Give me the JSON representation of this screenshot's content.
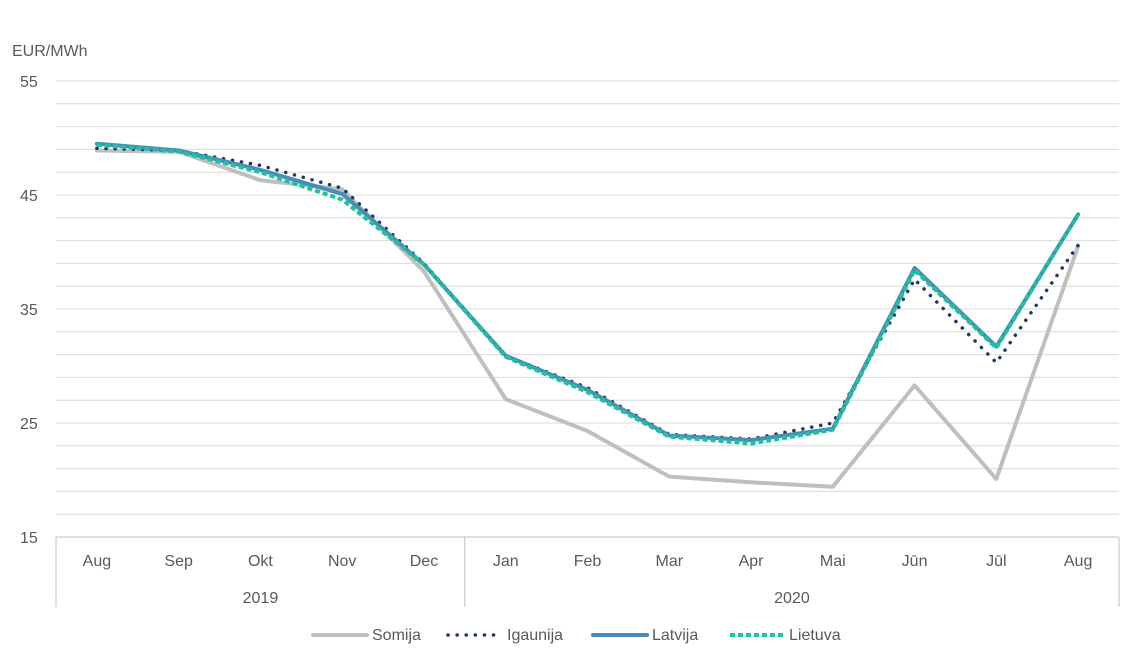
{
  "chart_data": {
    "type": "line",
    "ylabel": "EUR/MWh",
    "ylim": [
      15,
      55
    ],
    "yticks": [
      "55",
      "45",
      "35",
      "25",
      "15"
    ],
    "grid": true,
    "legend_position": "bottom",
    "categories": [
      "Aug",
      "Sep",
      "Okt",
      "Nov",
      "Dec",
      "Jan",
      "Feb",
      "Mar",
      "Apr",
      "Mai",
      "Jūn",
      "Jūl",
      "Aug"
    ],
    "year_groups": [
      {
        "label": "2019",
        "start": 0,
        "count": 5
      },
      {
        "label": "2020",
        "start": 5,
        "count": 8
      }
    ],
    "series": [
      {
        "name": "Somija",
        "color": "#bfbfbf",
        "style": "solid",
        "values": [
          48.9,
          48.8,
          46.3,
          45.5,
          38.3,
          27.1,
          24.3,
          20.3,
          19.8,
          19.4,
          28.3,
          20.1,
          40.5
        ]
      },
      {
        "name": "Igaunija",
        "color": "#1f3864",
        "style": "dotted",
        "values": [
          49.1,
          48.9,
          47.6,
          45.6,
          39.0,
          30.9,
          28.1,
          24.0,
          23.6,
          25.0,
          37.6,
          30.3,
          40.6
        ]
      },
      {
        "name": "Latvija",
        "color": "#4a8db4",
        "style": "solid",
        "values": [
          49.5,
          48.9,
          47.2,
          45.1,
          38.9,
          30.9,
          27.9,
          23.9,
          23.5,
          24.5,
          38.6,
          31.7,
          43.3
        ]
      },
      {
        "name": "Lietuva",
        "color": "#1cc3a0",
        "style": "dashed",
        "values": [
          49.4,
          48.8,
          47.0,
          44.6,
          38.9,
          30.8,
          27.7,
          23.8,
          23.2,
          24.4,
          38.4,
          31.6,
          43.3
        ]
      }
    ]
  }
}
